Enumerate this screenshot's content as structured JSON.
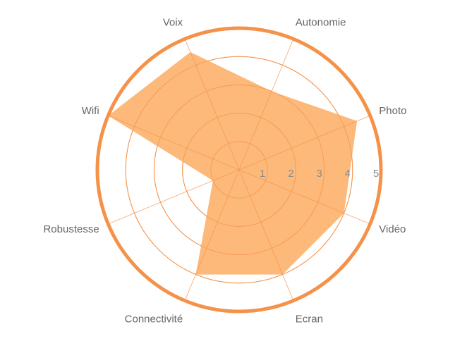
{
  "chart_data": {
    "type": "radar",
    "axes": [
      "Autonomie",
      "Photo",
      "Vidéo",
      "Ecran",
      "Connectivité",
      "Robustesse",
      "Wifi",
      "Voix"
    ],
    "series": [
      {
        "values": [
          3,
          4.5,
          4,
          4,
          4,
          1,
          5,
          4.5
        ]
      }
    ],
    "rlim": [
      0,
      5
    ],
    "r_ticks": [
      "1",
      "2",
      "3",
      "4",
      "5"
    ],
    "colors": {
      "fill": "#fdb97a",
      "grid": "#f5924a",
      "outer": "#f5924a",
      "label": "#666666",
      "tick": "#8c8c8c"
    }
  }
}
